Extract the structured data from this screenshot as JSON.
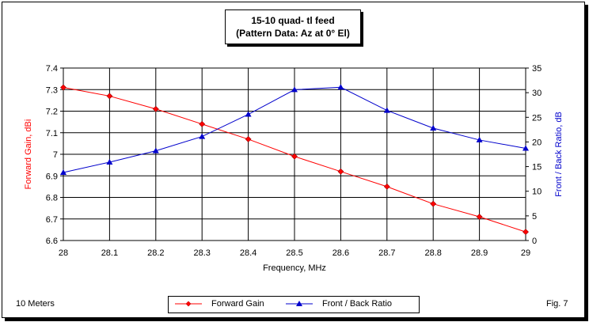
{
  "chart_data": {
    "type": "line",
    "title": "15-10 quad- tl feed",
    "subtitle": "(Pattern Data: Az at 0° El)",
    "xlabel": "Frequency, MHz",
    "ylabel_left": "Forward Gain,  dBi",
    "ylabel_right": "Front / Back Ratio,  dB",
    "x": [
      28,
      28.1,
      28.2,
      28.3,
      28.4,
      28.5,
      28.6,
      28.7,
      28.8,
      28.9,
      29
    ],
    "x_tick_labels": [
      "28",
      "28.1",
      "28.2",
      "28.3",
      "28.4",
      "28.5",
      "28.6",
      "28.7",
      "28.8",
      "28.9",
      "29"
    ],
    "xlim": [
      28,
      29
    ],
    "ylim_left": [
      6.6,
      7.4
    ],
    "ylim_right": [
      0,
      35
    ],
    "y_left_tick_labels": [
      "6.6",
      "6.7",
      "6.8",
      "6.9",
      "7",
      "7.1",
      "7.2",
      "7.3",
      "7.4"
    ],
    "y_right_tick_labels": [
      "0",
      "5",
      "10",
      "15",
      "20",
      "25",
      "30",
      "35"
    ],
    "grid": true,
    "legend_position": "bottom",
    "series": [
      {
        "name": "Forward Gain",
        "axis": "left",
        "color": "#ff0000",
        "marker": "diamond",
        "values": [
          7.31,
          7.27,
          7.21,
          7.14,
          7.07,
          6.99,
          6.92,
          6.85,
          6.77,
          6.71,
          6.64
        ]
      },
      {
        "name": "Front / Back Ratio",
        "axis": "right",
        "color": "#0000cc",
        "marker": "triangle",
        "values": [
          13.8,
          15.9,
          18.2,
          21.1,
          25.6,
          30.6,
          31.1,
          26.4,
          22.8,
          20.4,
          18.7
        ]
      }
    ]
  },
  "notes": {
    "bottom_left": "10 Meters",
    "bottom_right": "Fig. 7"
  }
}
